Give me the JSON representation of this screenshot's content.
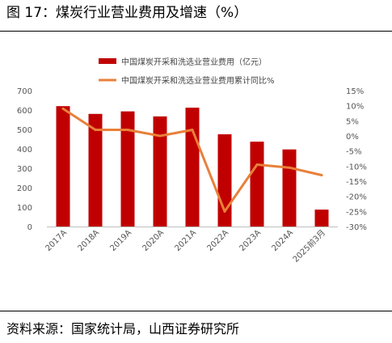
{
  "header": {
    "title": "图 17：煤炭行业营业费用及增速（%）"
  },
  "footer": {
    "source": "资料来源：国家统计局，山西证券研究所"
  },
  "colors": {
    "bar": "#c00000",
    "line": "#e8803a"
  },
  "chart_data": {
    "type": "bar",
    "categories": [
      "2017A",
      "2018A",
      "2019A",
      "2020A",
      "2021A",
      "2022A",
      "2023A",
      "2024A",
      "2025前3月"
    ],
    "series": [
      {
        "name": "中国煤炭开采和洗选业营业费用（亿元）",
        "type": "bar",
        "axis": "left",
        "values": [
          620,
          580,
          593,
          567,
          612,
          475,
          437,
          397,
          87
        ]
      },
      {
        "name": "中国煤炭开采和洗选业营业费用累计同比%",
        "type": "line",
        "axis": "right",
        "values": [
          9,
          2,
          2,
          0,
          2,
          -25,
          -9.5,
          -10.5,
          -13
        ]
      }
    ],
    "left_axis": {
      "min": 0,
      "max": 700,
      "ticks": [
        "0",
        "100",
        "200",
        "300",
        "400",
        "500",
        "600",
        "700"
      ]
    },
    "right_axis": {
      "min": -30,
      "max": 15,
      "ticks": [
        "-30%",
        "-25%",
        "-20%",
        "-15%",
        "-10%",
        "-5%",
        "0%",
        "5%",
        "10%",
        "15%"
      ]
    },
    "legend_position": "top",
    "grid": false
  }
}
